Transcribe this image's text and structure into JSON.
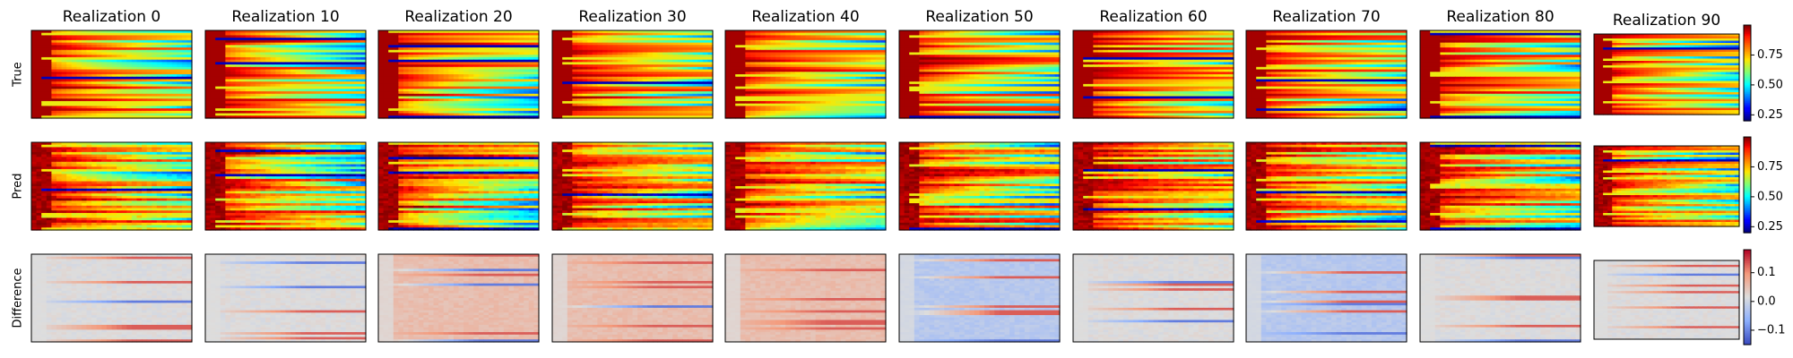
{
  "chart_data": {
    "type": "heatmap",
    "columns": [
      "Realization 0",
      "Realization 10",
      "Realization 20",
      "Realization 30",
      "Realization 40",
      "Realization 50",
      "Realization 60",
      "Realization 70",
      "Realization 80",
      "Realization 90"
    ],
    "rows": [
      "True",
      "Pred",
      "Difference"
    ],
    "colormaps": {
      "True": "jet",
      "Pred": "jet",
      "Difference": "coolwarm"
    },
    "colorbars": [
      {
        "row": "True",
        "range": [
          0.2,
          1.0
        ],
        "ticks": [
          0.25,
          0.5,
          0.75
        ],
        "tick_labels": [
          "0.25",
          "0.50",
          "0.75"
        ]
      },
      {
        "row": "Pred",
        "range": [
          0.2,
          1.0
        ],
        "ticks": [
          0.25,
          0.5,
          0.75
        ],
        "tick_labels": [
          "0.25",
          "0.50",
          "0.75"
        ]
      },
      {
        "row": "Difference",
        "range": [
          -0.15,
          0.18
        ],
        "ticks": [
          -0.1,
          0.0,
          0.1
        ],
        "tick_labels": [
          "−0.1",
          "0.0",
          "0.1"
        ]
      }
    ],
    "grid": false,
    "legend": "none",
    "colors": {
      "frame": "#000000",
      "background": "#ffffff"
    }
  }
}
